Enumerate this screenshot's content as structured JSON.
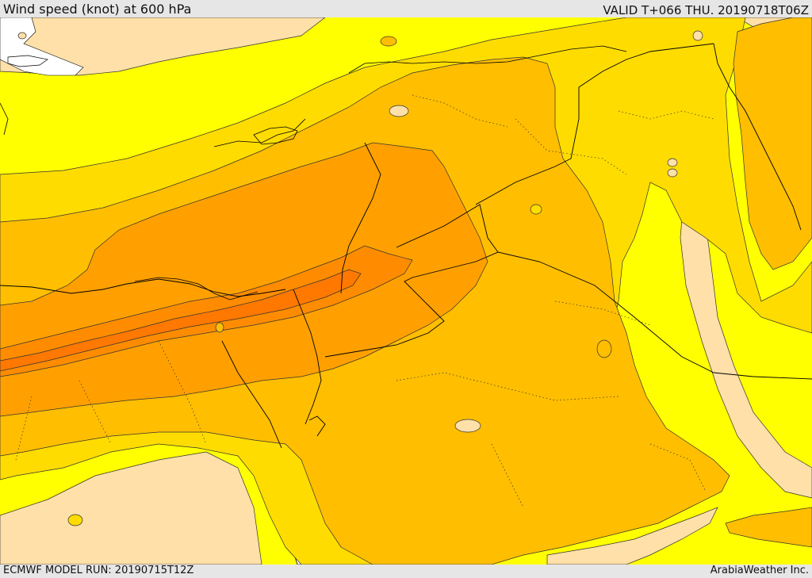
{
  "header": {
    "title": "Wind speed (knot) at 600 hPa",
    "valid": "VALID T+066 THU. 20190718T06Z"
  },
  "footer": {
    "model_run": "ECMWF MODEL RUN: 20190715T12Z",
    "credit": "ArabiaWeather Inc."
  },
  "colors": {
    "band_lightest": "#ffe0a8",
    "band_low": "#ffff00",
    "band_1": "#ffdc00",
    "band_2": "#ffbe00",
    "band_3": "#ffa000",
    "band_4": "#ff8c00",
    "band_5": "#ff7800",
    "sea_white": "#ffffff",
    "border": "#000000"
  }
}
